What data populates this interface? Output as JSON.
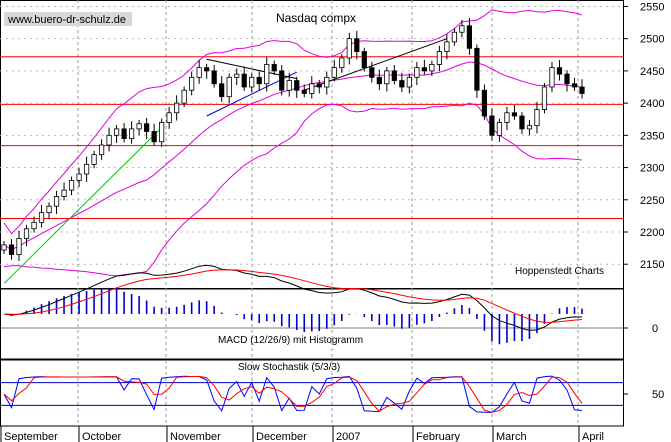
{
  "chart_data": [
    {
      "type": "candlestick",
      "title": "Nasdaq compx",
      "watermark": "www.buero-dr-schulz.de",
      "credit": "Hoppenstedt Charts",
      "y_ticks": [
        2150,
        2200,
        2250,
        2300,
        2350,
        2400,
        2450,
        2500,
        2550
      ],
      "ylim": [
        2110,
        2560
      ],
      "x_labels": [
        "September",
        "October",
        "November",
        "December",
        "2007",
        "February",
        "March",
        "April"
      ],
      "support_resistance_levels": [
        2472,
        2398,
        2334,
        2221
      ],
      "colors": {
        "candles": "#000000",
        "bollinger": "#e000e0",
        "levels": "#ff0000",
        "trendline": "#00cc00",
        "wedge": "#0000cc"
      },
      "close_series": [
        2180,
        2165,
        2190,
        2205,
        2215,
        2230,
        2240,
        2255,
        2265,
        2280,
        2290,
        2305,
        2320,
        2335,
        2350,
        2360,
        2345,
        2360,
        2368,
        2356,
        2340,
        2370,
        2385,
        2400,
        2420,
        2440,
        2455,
        2450,
        2430,
        2410,
        2440,
        2445,
        2425,
        2440,
        2430,
        2460,
        2450,
        2420,
        2435,
        2420,
        2415,
        2430,
        2425,
        2440,
        2455,
        2470,
        2500,
        2480,
        2455,
        2440,
        2430,
        2450,
        2435,
        2425,
        2440,
        2455,
        2450,
        2460,
        2480,
        2495,
        2510,
        2520,
        2485,
        2420,
        2380,
        2350,
        2370,
        2385,
        2380,
        2360,
        2365,
        2390,
        2425,
        2455,
        2445,
        2430,
        2425,
        2415
      ]
    },
    {
      "type": "line",
      "label": "MACD (12/26/9) mit Histogramm",
      "y_ticks": [
        0
      ],
      "colors": {
        "macd": "#000000",
        "signal": "#ff0000",
        "histogram": "#0000cc"
      }
    },
    {
      "type": "line",
      "label": "Slow Stochastik (5/3/3)",
      "y_ticks": [
        50
      ],
      "colors": {
        "k": "#0000ff",
        "d": "#ff0000",
        "bands": "#0000cc"
      }
    }
  ]
}
